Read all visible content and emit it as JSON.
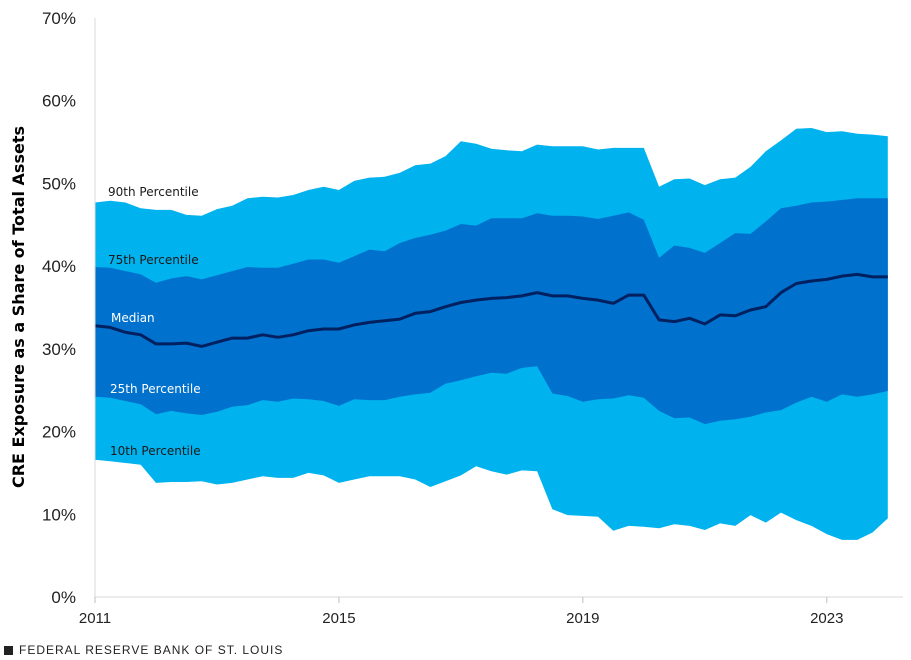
{
  "chart_data": {
    "type": "area",
    "ylabel": "CRE Exposure as a Share of Total Assets",
    "ylim": [
      0,
      70
    ],
    "yticks": [
      "0%",
      "10%",
      "20%",
      "30%",
      "40%",
      "50%",
      "60%",
      "70%"
    ],
    "xlim": [
      2011.0,
      2024.25
    ],
    "xticks": [
      {
        "value": 2011,
        "label": "2011"
      },
      {
        "value": 2015,
        "label": "2015"
      },
      {
        "value": 2019,
        "label": "2019"
      },
      {
        "value": 2023,
        "label": "2023"
      }
    ],
    "x_start": 2011.0,
    "x_step": 0.25,
    "series": [
      {
        "name": "90th Percentile",
        "color": "#00B2EE",
        "values": [
          47.7,
          47.9,
          47.7,
          47.0,
          46.8,
          46.8,
          46.2,
          46.1,
          46.9,
          47.3,
          48.2,
          48.4,
          48.3,
          48.6,
          49.2,
          49.6,
          49.2,
          50.3,
          50.7,
          50.8,
          51.3,
          52.2,
          52.4,
          53.3,
          55.1,
          54.8,
          54.2,
          54.0,
          53.9,
          54.7,
          54.5,
          54.5,
          54.5,
          54.1,
          54.3,
          54.3,
          54.3,
          49.6,
          50.5,
          50.6,
          49.8,
          50.5,
          50.7,
          52.0,
          53.9,
          55.2,
          56.6,
          56.7,
          56.2,
          56.3,
          56.0,
          55.9,
          55.7
        ]
      },
      {
        "name": "75th Percentile",
        "color": "#0072CE",
        "values": [
          39.9,
          39.8,
          39.4,
          39.0,
          38.0,
          38.5,
          38.8,
          38.4,
          38.9,
          39.4,
          39.9,
          39.8,
          39.8,
          40.3,
          40.8,
          40.8,
          40.4,
          41.2,
          42.0,
          41.8,
          42.8,
          43.4,
          43.8,
          44.3,
          45.1,
          44.9,
          45.8,
          45.8,
          45.8,
          46.4,
          46.1,
          46.1,
          46.0,
          45.7,
          46.1,
          46.5,
          45.6,
          41.0,
          42.5,
          42.2,
          41.6,
          42.8,
          44.0,
          43.9,
          45.4,
          47.0,
          47.3,
          47.7,
          47.8,
          48.0,
          48.2,
          48.2,
          48.2
        ]
      },
      {
        "name": "Median",
        "color": "#002060",
        "values": [
          32.8,
          32.6,
          32.0,
          31.7,
          30.6,
          30.6,
          30.7,
          30.3,
          30.8,
          31.3,
          31.3,
          31.7,
          31.4,
          31.7,
          32.2,
          32.4,
          32.4,
          32.9,
          33.2,
          33.4,
          33.6,
          34.3,
          34.5,
          35.1,
          35.6,
          35.9,
          36.1,
          36.2,
          36.4,
          36.8,
          36.4,
          36.4,
          36.1,
          35.9,
          35.5,
          36.5,
          36.5,
          33.5,
          33.3,
          33.7,
          33.0,
          34.1,
          34.0,
          34.7,
          35.1,
          36.8,
          37.9,
          38.2,
          38.4,
          38.8,
          39.0,
          38.7,
          38.7
        ]
      },
      {
        "name": "25th Percentile",
        "color": "#0072CE",
        "values": [
          24.2,
          24.1,
          23.7,
          23.3,
          22.1,
          22.5,
          22.2,
          22.0,
          22.4,
          23.0,
          23.2,
          23.8,
          23.6,
          24.0,
          23.9,
          23.7,
          23.1,
          23.9,
          23.8,
          23.8,
          24.2,
          24.5,
          24.7,
          25.8,
          26.2,
          26.7,
          27.1,
          27.0,
          27.7,
          27.9,
          24.6,
          24.3,
          23.6,
          23.9,
          24.0,
          24.4,
          24.1,
          22.5,
          21.6,
          21.7,
          20.9,
          21.3,
          21.5,
          21.8,
          22.3,
          22.6,
          23.5,
          24.2,
          23.6,
          24.5,
          24.2,
          24.5,
          24.9
        ]
      },
      {
        "name": "10th Percentile",
        "color": "#00B2EE",
        "values": [
          16.6,
          16.4,
          16.2,
          16.0,
          13.8,
          13.9,
          13.9,
          14.0,
          13.6,
          13.8,
          14.2,
          14.6,
          14.4,
          14.4,
          15.0,
          14.7,
          13.8,
          14.2,
          14.6,
          14.6,
          14.6,
          14.2,
          13.3,
          14.0,
          14.7,
          15.8,
          15.2,
          14.8,
          15.3,
          15.2,
          10.6,
          9.9,
          9.8,
          9.7,
          8.0,
          8.6,
          8.5,
          8.3,
          8.8,
          8.6,
          8.1,
          8.9,
          8.6,
          9.9,
          9.0,
          10.2,
          9.3,
          8.6,
          7.6,
          6.9,
          6.9,
          7.8,
          9.5
        ]
      }
    ]
  },
  "labels": {
    "p90": "90th Percentile",
    "p75": "75th Percentile",
    "median": "Median",
    "p25": "25th Percentile",
    "p10": "10th Percentile"
  },
  "colors": {
    "outer_band": "#00B2EE",
    "inner_band": "#0072CE",
    "median_line": "#002060",
    "label_dark": "#1A1A1A",
    "label_light": "#FFFFFF"
  },
  "footer": "FEDERAL RESERVE BANK OF ST. LOUIS"
}
